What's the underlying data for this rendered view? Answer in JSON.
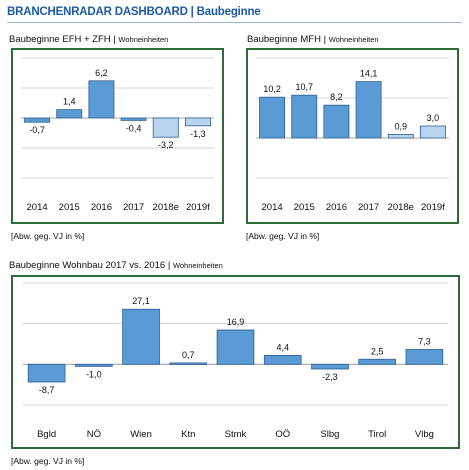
{
  "header": {
    "title": "BRANCHENRADAR DASHBOARD | Baubeginne"
  },
  "colors": {
    "bar": "#5b9bd5",
    "bar_light": "#b9d4ee",
    "frame": "#2f6b3a",
    "header": "#1d5aa8"
  },
  "charts": [
    {
      "title": "Baubeginne EFH + ZFH",
      "subtitle": "Wohneinheiten",
      "note": "[Abw. geg. VJ in %]"
    },
    {
      "title": "Baubeginne MFH",
      "subtitle": "Wohneinheiten",
      "note": "[Abw. geg. VJ in %]"
    },
    {
      "title": "Baubeginne Wohnbau 2017 vs. 2016",
      "subtitle": "Wohneinheiten",
      "note": "[Abw. geg. VJ in %]"
    }
  ],
  "chart_data": [
    {
      "type": "bar",
      "title": "Baubeginne EFH + ZFH | Wohneinheiten",
      "categories": [
        "2014",
        "2015",
        "2016",
        "2017",
        "2018e",
        "2019f"
      ],
      "values": [
        -0.7,
        1.4,
        6.2,
        -0.4,
        -3.2,
        -1.3
      ],
      "labels": [
        "-0,7",
        "1,4",
        "6,2",
        "-0,4",
        "-3,2",
        "-1,3"
      ],
      "highlight": [
        false,
        false,
        false,
        false,
        true,
        true
      ],
      "ylim": [
        -10,
        10
      ],
      "grid": true
    },
    {
      "type": "bar",
      "title": "Baubeginne MFH | Wohneinheiten",
      "categories": [
        "2014",
        "2015",
        "2016",
        "2017",
        "2018e",
        "2019f"
      ],
      "values": [
        10.2,
        10.7,
        8.2,
        14.1,
        0.9,
        3.0
      ],
      "labels": [
        "10,2",
        "10,7",
        "8,2",
        "14,1",
        "0,9",
        "3,0"
      ],
      "highlight": [
        false,
        false,
        false,
        false,
        true,
        true
      ],
      "ylim": [
        -10,
        20
      ],
      "grid": true
    },
    {
      "type": "bar",
      "title": "Baubeginne Wohnbau 2017 vs. 2016 | Wohneinheiten",
      "categories": [
        "Bgld",
        "NÖ",
        "Wien",
        "Ktn",
        "Stmk",
        "OÖ",
        "Slbg",
        "Tirol",
        "Vlbg"
      ],
      "values": [
        -8.7,
        -1.0,
        27.1,
        0.7,
        16.9,
        4.4,
        -2.3,
        2.5,
        7.3
      ],
      "labels": [
        "-8,7",
        "-1,0",
        "27,1",
        "0,7",
        "16,9",
        "4,4",
        "-2,3",
        "2,5",
        "7,3"
      ],
      "highlight": [
        false,
        false,
        false,
        false,
        false,
        false,
        false,
        false,
        false
      ],
      "ylim": [
        -20,
        40
      ],
      "grid": true
    }
  ]
}
